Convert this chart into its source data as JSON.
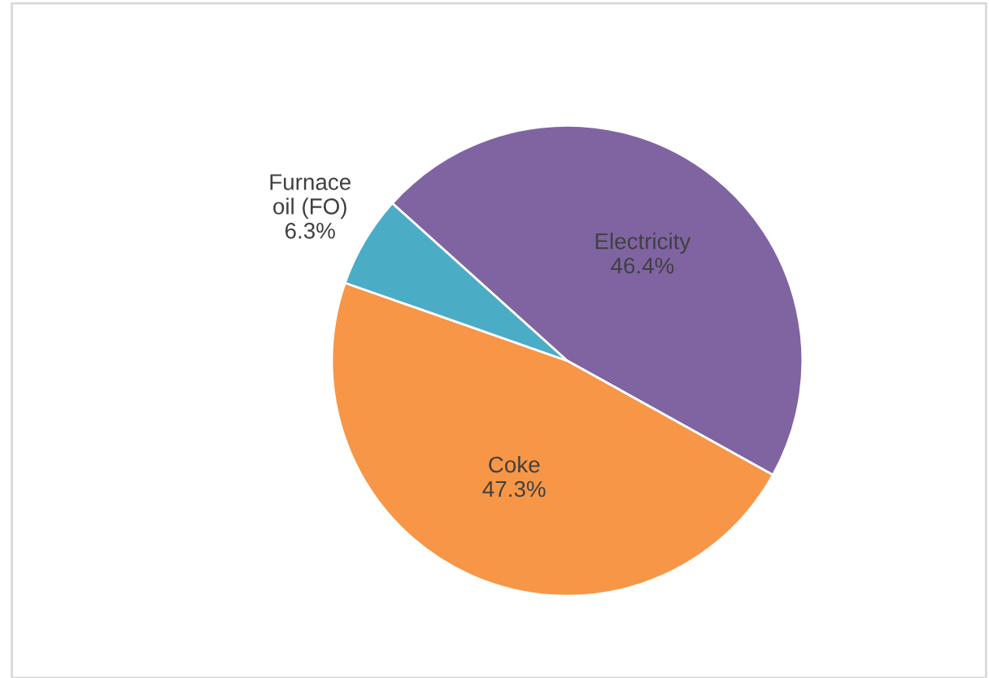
{
  "chart_data": {
    "type": "pie",
    "categories": [
      "Electricity",
      "Coke",
      "Furnace oil (FO)"
    ],
    "values": [
      46.4,
      47.3,
      6.3
    ],
    "value_labels": [
      "46.4%",
      "47.3%",
      "6.3%"
    ],
    "colors": [
      "#8064a2",
      "#f79646",
      "#4bacc6"
    ],
    "legend": false
  }
}
